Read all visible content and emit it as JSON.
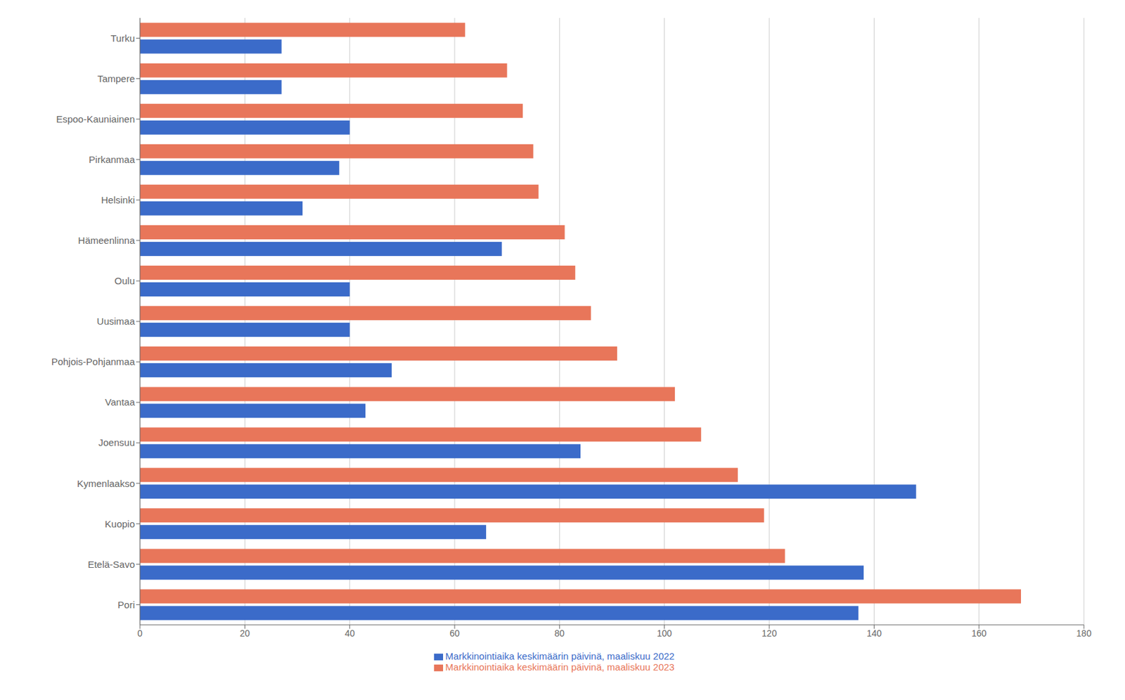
{
  "chart_data": {
    "type": "bar",
    "orientation": "horizontal",
    "categories": [
      "Turku",
      "Tampere",
      "Espoo-Kauniainen",
      "Pirkanmaa",
      "Helsinki",
      "Hämeenlinna",
      "Oulu",
      "Uusimaa",
      "Pohjois-Pohjanmaa",
      "Vantaa",
      "Joensuu",
      "Kymenlaakso",
      "Kuopio",
      "Etelä-Savo",
      "Pori"
    ],
    "series": [
      {
        "name": "Markkinointiaika keskimäärin päivinä, maaliskuu 2023",
        "color": "#E8765A",
        "values": [
          62,
          70,
          73,
          75,
          76,
          81,
          83,
          86,
          91,
          102,
          107,
          114,
          119,
          123,
          168
        ]
      },
      {
        "name": "Markkinointiaika keskimäärin päivinä, maaliskuu 2022",
        "color": "#3B6BC9",
        "values": [
          27,
          27,
          40,
          38,
          31,
          69,
          40,
          40,
          48,
          43,
          84,
          148,
          66,
          138,
          137
        ]
      }
    ],
    "xlim": [
      0,
      180
    ],
    "xticks": [
      0,
      20,
      40,
      60,
      80,
      100,
      120,
      140,
      160,
      180
    ],
    "grid": true,
    "legend": "bottom"
  }
}
